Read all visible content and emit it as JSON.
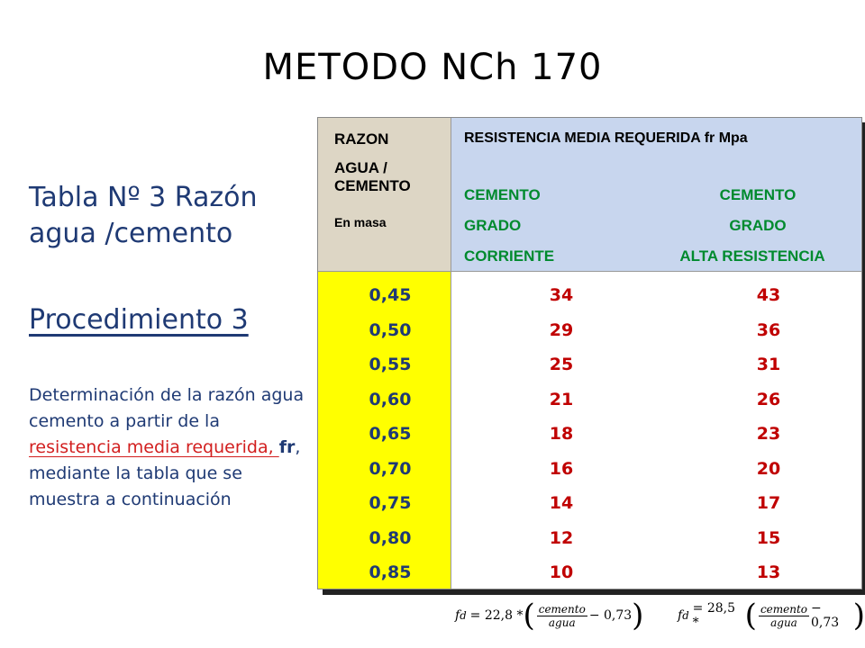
{
  "title": "METODO NCh 170",
  "left": {
    "heading_line1": "Tabla Nº 3 Razón",
    "heading_line2": "agua /cemento",
    "procedure": "Procedimiento 3",
    "desc_part1": "Determinación de  la razón agua cemento a partir de la ",
    "desc_red": "resistencia media requerida, ",
    "desc_bold": "fr",
    "desc_part2": ", mediante la tabla que se muestra a continuación"
  },
  "table": {
    "header_left": [
      "RAZON",
      "AGUA / CEMENTO",
      "En masa"
    ],
    "header_right_title": "RESISTENCIA MEDIA REQUERIDA fr Mpa",
    "col1_label": [
      "CEMENTO",
      "GRADO",
      "CORRIENTE"
    ],
    "col2_label": [
      "CEMENTO",
      "GRADO",
      "ALTA RESISTENCIA"
    ],
    "rows": [
      {
        "razon": "0,45",
        "v1": "34",
        "v2": "43"
      },
      {
        "razon": "0,50",
        "v1": "29",
        "v2": "36"
      },
      {
        "razon": "0,55",
        "v1": "25",
        "v2": "31"
      },
      {
        "razon": "0,60",
        "v1": "21",
        "v2": "26"
      },
      {
        "razon": "0,65",
        "v1": "18",
        "v2": "23"
      },
      {
        "razon": "0,70",
        "v1": "16",
        "v2": "20"
      },
      {
        "razon": "0,75",
        "v1": "14",
        "v2": "17"
      },
      {
        "razon": "0,80",
        "v1": "12",
        "v2": "15"
      },
      {
        "razon": "0,85",
        "v1": "10",
        "v2": "13"
      }
    ]
  },
  "formulas": [
    {
      "lhs": "f",
      "sub": "d",
      "coef": "= 22,8 *",
      "num": "cemento",
      "den": "agua",
      "tail": "− 0,73"
    },
    {
      "lhs": "f",
      "sub": "d",
      "coef": "= 28,5 *",
      "num": "cemento",
      "den": "agua",
      "tail": "− 0,73"
    }
  ]
}
